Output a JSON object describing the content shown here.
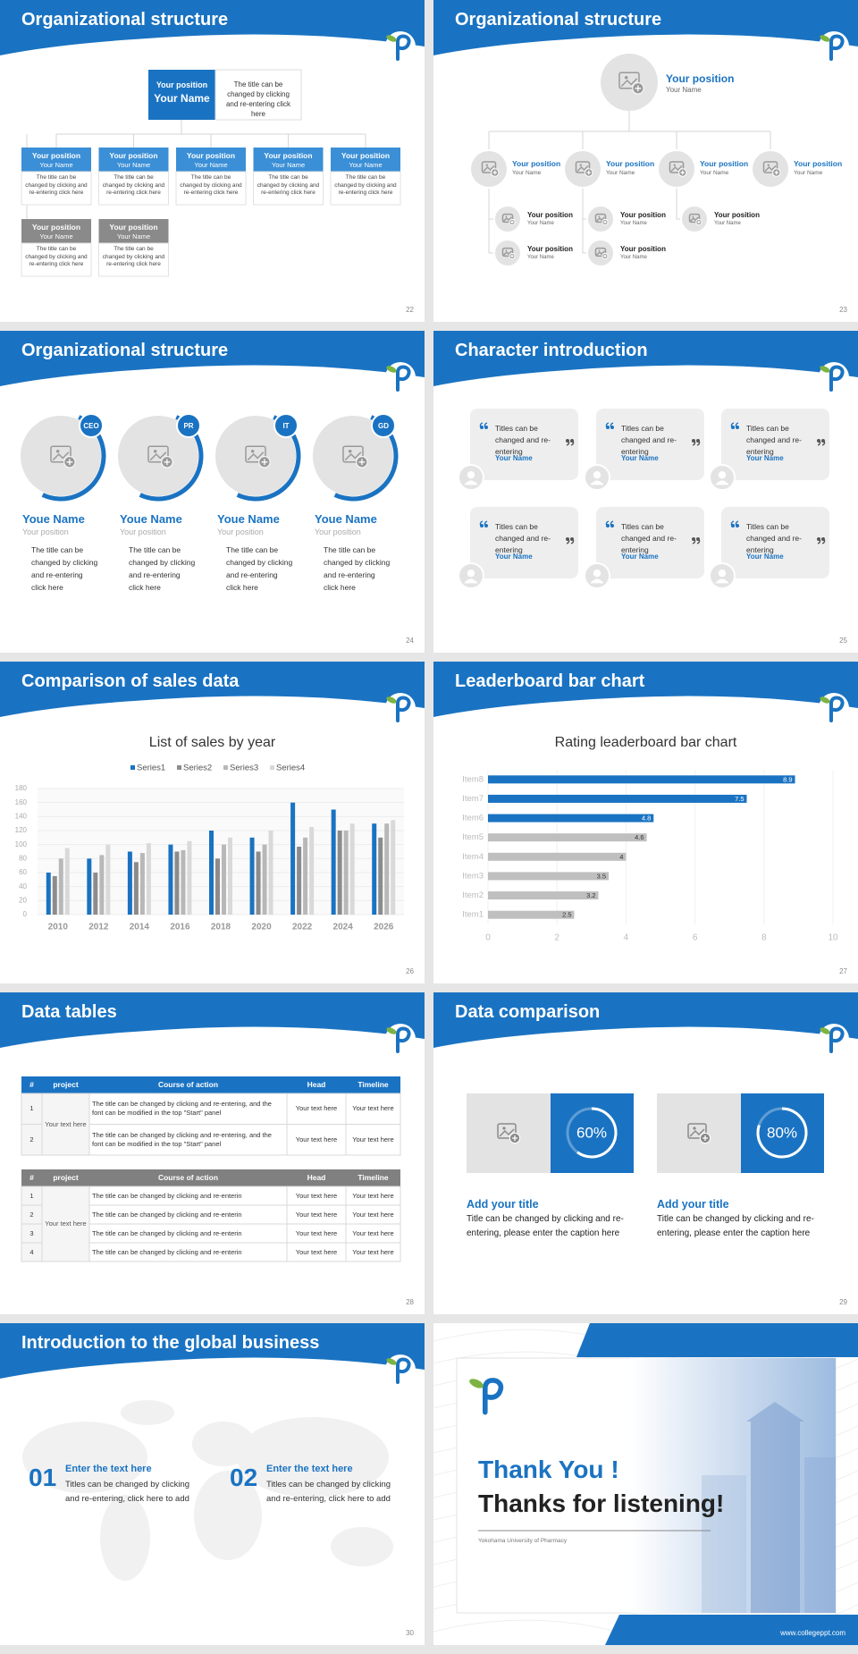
{
  "slides": [
    {
      "title": "Organizational structure",
      "page": "22",
      "top": {
        "position": "Your position",
        "name": "Your Name",
        "text": "The title can be changed by clicking and re-entering click here"
      },
      "members": [
        {
          "position": "Your position",
          "name": "Your Name",
          "text": "The title can be changed by clicking and re-entering click here"
        },
        {
          "position": "Your position",
          "name": "Your Name",
          "text": "The title can be changed by clicking and re-entering click here"
        },
        {
          "position": "Your position",
          "name": "Your Name",
          "text": "The title can be changed by clicking and re-entering click here"
        },
        {
          "position": "Your position",
          "name": "Your Name",
          "text": "The title can be changed by clicking and re-entering click here"
        },
        {
          "position": "Your position",
          "name": "Your Name",
          "text": "The title can be changed by clicking and re-entering click here"
        },
        {
          "position": "Your position",
          "name": "Your Name",
          "text": "The title can be changed by clicking and re-entering click here"
        },
        {
          "position": "Your position",
          "name": "Your Name",
          "text": "The title can be changed by clicking and re-entering click here"
        }
      ]
    },
    {
      "title": "Organizational structure",
      "page": "23",
      "top": {
        "position": "Your position",
        "name": "Your Name"
      },
      "level1": [
        {
          "position": "Your position",
          "name": "Your Name"
        },
        {
          "position": "Your position",
          "name": "Your Name"
        },
        {
          "position": "Your position",
          "name": "Your Name"
        },
        {
          "position": "Your position",
          "name": "Your Name"
        }
      ],
      "level2": [
        {
          "position": "Your position",
          "name": "Your Name"
        },
        {
          "position": "Your position",
          "name": "Your Name"
        },
        {
          "position": "Your position",
          "name": "Your Name"
        },
        {
          "position": "Your position",
          "name": "Your Name"
        },
        {
          "position": "Your position",
          "name": "Your Name"
        }
      ]
    },
    {
      "title": "Organizational structure",
      "page": "24",
      "people": [
        {
          "tag": "CEO",
          "name": "Youe Name",
          "position": "Your position",
          "text": "The title can be changed by clicking and re-entering click here"
        },
        {
          "tag": "PR",
          "name": "Youe Name",
          "position": "Your position",
          "text": "The title can be changed by clicking and re-entering click here"
        },
        {
          "tag": "IT",
          "name": "Youe Name",
          "position": "Your position",
          "text": "The title can be changed by clicking and re-entering click here"
        },
        {
          "tag": "GD",
          "name": "Youe Name",
          "position": "Your position",
          "text": "The title can be changed by clicking and re-entering click here"
        }
      ]
    },
    {
      "title": "Character introduction",
      "page": "25",
      "quotes": [
        {
          "text": "Titles can be changed and re-entering",
          "name": "Your Name"
        },
        {
          "text": "Titles can be changed and re-entering",
          "name": "Your Name"
        },
        {
          "text": "Titles can be changed and re-entering",
          "name": "Your Name"
        },
        {
          "text": "Titles can be changed and re-entering",
          "name": "Your Name"
        },
        {
          "text": "Titles can be changed and re-entering",
          "name": "Your Name"
        },
        {
          "text": "Titles can be changed and re-entering",
          "name": "Your Name"
        }
      ]
    },
    {
      "title": "Comparison of sales data",
      "page": "26",
      "chart": {
        "type": "bar",
        "title": "List of sales by year",
        "categories": [
          "2010",
          "2012",
          "2014",
          "2016",
          "2018",
          "2020",
          "2022",
          "2024",
          "2026"
        ],
        "series": [
          {
            "name": "Series1",
            "color": "#1a73c2",
            "values": [
              60,
              80,
              90,
              100,
              120,
              110,
              160,
              150,
              130
            ]
          },
          {
            "name": "Series2",
            "color": "#8c8c8c",
            "values": [
              55,
              60,
              75,
              90,
              80,
              90,
              97,
              120,
              110
            ]
          },
          {
            "name": "Series3",
            "color": "#b8b8b8",
            "values": [
              80,
              85,
              88,
              92,
              100,
              100,
              110,
              120,
              130
            ]
          },
          {
            "name": "Series4",
            "color": "#d9d9d9",
            "values": [
              95,
              100,
              102,
              105,
              110,
              120,
              125,
              130,
              135
            ]
          }
        ],
        "ylim": [
          0,
          180
        ],
        "yticks": [
          0,
          20,
          40,
          60,
          80,
          100,
          120,
          140,
          160,
          180
        ],
        "grid": true
      }
    },
    {
      "title": "Leaderboard bar chart",
      "page": "27",
      "chart": {
        "type": "bar",
        "horizontal": true,
        "title": "Rating leaderboard bar chart",
        "categories": [
          "Item1",
          "Item2",
          "Item3",
          "Item4",
          "Item5",
          "Item6",
          "Item7",
          "Item8"
        ],
        "values": [
          2.5,
          3.2,
          3.5,
          4,
          4.6,
          4.8,
          7.5,
          8.9
        ],
        "colors": [
          "#bfbfbf",
          "#bfbfbf",
          "#bfbfbf",
          "#bfbfbf",
          "#bfbfbf",
          "#1a73c2",
          "#1a73c2",
          "#1a73c2"
        ],
        "xlim": [
          0,
          10
        ],
        "xticks": [
          0,
          2,
          4,
          6,
          8,
          10
        ],
        "grid": true
      }
    },
    {
      "title": "Data tables",
      "page": "28",
      "tables": [
        {
          "header": [
            "#",
            "project",
            "Course of action",
            "Head",
            "Timeline"
          ],
          "group": "Your text here",
          "rows": [
            [
              "1",
              "The title can be changed by clicking and re-entering, and the font can be modified in the top \"Start\" panel",
              "Your text here",
              "Your text here"
            ],
            [
              "2",
              "The title can be changed by clicking and re-entering, and the font can be modified in the top \"Start\" panel",
              "Your text here",
              "Your text here"
            ]
          ]
        },
        {
          "header": [
            "#",
            "project",
            "Course of action",
            "Head",
            "Timeline"
          ],
          "group": "Your text here",
          "rows": [
            [
              "1",
              "The title can be changed by clicking and re-enterin",
              "Your text here",
              "Your text here"
            ],
            [
              "2",
              "The title can be changed by clicking and re-enterin",
              "Your text here",
              "Your text here"
            ],
            [
              "3",
              "The title can be changed by clicking and re-enterin",
              "Your text here",
              "Your text here"
            ],
            [
              "4",
              "The title can be changed by clicking and re-enterin",
              "Your text here",
              "Your text here"
            ]
          ]
        }
      ]
    },
    {
      "title": "Data comparison",
      "page": "29",
      "comparison": {
        "values": [
          60,
          80
        ],
        "value_labels": [
          "60%",
          "80%"
        ],
        "titles": [
          "Add your title",
          "Add your title"
        ],
        "texts": [
          "Title can be changed by clicking and re-entering, please enter the caption here",
          "Title can be changed by clicking and re-entering, please enter the caption here"
        ]
      }
    },
    {
      "title": "Introduction to the global business",
      "page": "30",
      "items": [
        {
          "number": "01",
          "title": "Enter the text here",
          "text": "Titles can be changed by clicking and re-entering, click here to add"
        },
        {
          "number": "02",
          "title": "Enter the text here",
          "text": "Titles can be changed by clicking and re-entering, click here to add"
        }
      ]
    },
    {
      "heading": "Thank You !",
      "subheading": "Thanks for listening!",
      "school": "Yokohama University of Pharmacy",
      "url": "www.collegeppt.com"
    }
  ]
}
